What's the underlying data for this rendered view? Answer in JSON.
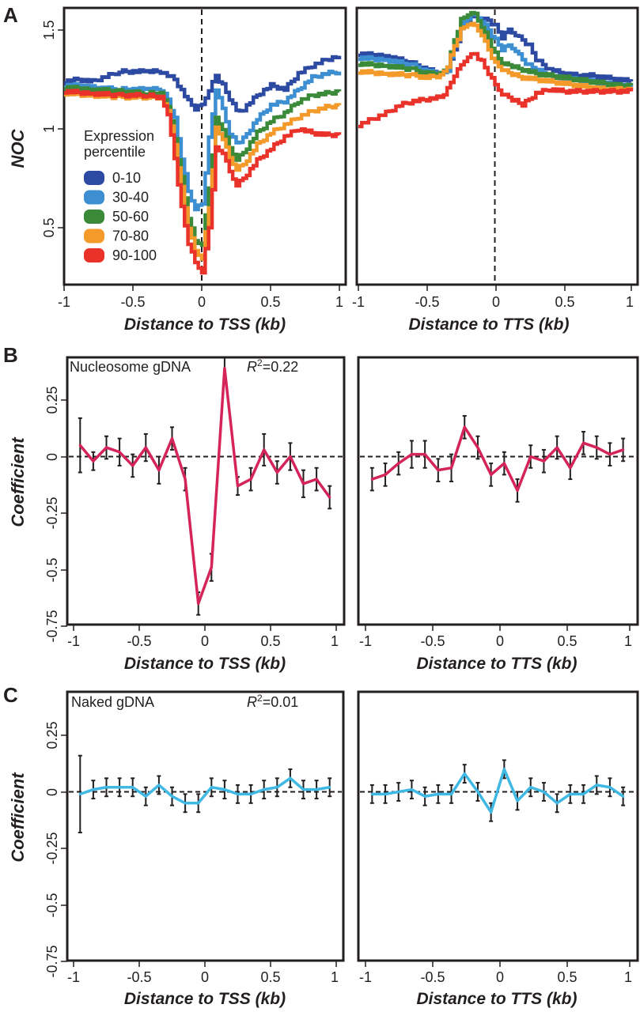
{
  "panels": {
    "A": {
      "letter": "A",
      "ylabel": "NOC",
      "yticks": [
        "0.5",
        "1",
        "1.5"
      ],
      "legend_title_line1": "Expression",
      "legend_title_line2": "percentile",
      "left": {
        "xlabel": "Distance to TSS (kb)",
        "xticks": [
          "-1",
          "-0.5",
          "0",
          "0.5",
          "1"
        ]
      },
      "right": {
        "xlabel": "Distance to TTS (kb)",
        "xticks": [
          "-1",
          "-0.5",
          "0",
          "0.5",
          "1"
        ]
      }
    },
    "B": {
      "letter": "B",
      "ylabel": "Coefficient",
      "yticks": [
        "0.25",
        "0",
        "-0.25",
        "-0.5",
        "-0.75"
      ],
      "label": "Nucleosome gDNA",
      "r2_sym": "R",
      "r2_sup": "2",
      "r2_val": "=0.22",
      "left": {
        "xlabel": "Distance to TSS (kb)",
        "xticks": [
          "-1",
          "-0.5",
          "0",
          "0.5",
          "1"
        ]
      },
      "right": {
        "xlabel": "Distance to TTS (kb)",
        "xticks": [
          "-1",
          "-0.5",
          "0",
          "0.5",
          "1"
        ]
      }
    },
    "C": {
      "letter": "C",
      "ylabel": "Coefficient",
      "yticks": [
        "0.25",
        "0",
        "-0.25",
        "-0.5",
        "-0.75"
      ],
      "label": "Naked gDNA",
      "r2_sym": "R",
      "r2_sup": "2",
      "r2_val": "=0.01",
      "left": {
        "xlabel": "Distance to TSS (kb)",
        "xticks": [
          "-1",
          "-0.5",
          "0",
          "0.5",
          "1"
        ]
      },
      "right": {
        "xlabel": "Distance to TTS (kb)",
        "xticks": [
          "-1",
          "-0.5",
          "0",
          "0.5",
          "1"
        ]
      }
    }
  },
  "chart_data": [
    {
      "id": "A-TSS",
      "type": "line",
      "style": "step",
      "xlabel": "Distance to TSS (kb)",
      "ylabel": "NOC",
      "xlim": [
        -1,
        1
      ],
      "ylim": [
        0.22,
        1.6
      ],
      "vline": 0,
      "series": [
        {
          "name": "0-10",
          "color": "#2d4aa3",
          "x": [
            -1,
            -0.9,
            -0.8,
            -0.6,
            -0.4,
            -0.3,
            -0.2,
            -0.1,
            -0.05,
            0,
            0.05,
            0.1,
            0.15,
            0.2,
            0.25,
            0.3,
            0.4,
            0.5,
            0.6,
            0.7,
            0.8,
            0.9,
            1
          ],
          "y": [
            1.24,
            1.25,
            1.24,
            1.29,
            1.29,
            1.29,
            1.25,
            1.14,
            1.1,
            1.12,
            1.2,
            1.27,
            1.22,
            1.15,
            1.09,
            1.1,
            1.17,
            1.22,
            1.2,
            1.28,
            1.32,
            1.35,
            1.37
          ]
        },
        {
          "name": "30-40",
          "color": "#3d8fd1",
          "x": [
            -1,
            -0.9,
            -0.8,
            -0.6,
            -0.4,
            -0.3,
            -0.25,
            -0.2,
            -0.15,
            -0.1,
            -0.05,
            0,
            0.05,
            0.1,
            0.15,
            0.2,
            0.25,
            0.3,
            0.4,
            0.5,
            0.6,
            0.7,
            0.8,
            0.9,
            1
          ],
          "y": [
            1.22,
            1.22,
            1.21,
            1.2,
            1.2,
            1.2,
            1.15,
            1.05,
            0.85,
            0.68,
            0.6,
            0.62,
            0.95,
            1.2,
            1.1,
            0.98,
            0.93,
            0.95,
            1.05,
            1.12,
            1.14,
            1.2,
            1.26,
            1.28,
            1.29
          ]
        },
        {
          "name": "50-60",
          "color": "#3a8a3a",
          "x": [
            -1,
            -0.8,
            -0.6,
            -0.4,
            -0.3,
            -0.25,
            -0.2,
            -0.15,
            -0.1,
            -0.05,
            0,
            0.05,
            0.1,
            0.15,
            0.2,
            0.25,
            0.3,
            0.4,
            0.5,
            0.6,
            0.7,
            0.8,
            0.9,
            1
          ],
          "y": [
            1.21,
            1.2,
            1.19,
            1.18,
            1.18,
            1.12,
            0.95,
            0.75,
            0.55,
            0.43,
            0.42,
            0.7,
            1.05,
            1.0,
            0.9,
            0.85,
            0.88,
            0.98,
            1.04,
            1.08,
            1.14,
            1.17,
            1.18,
            1.19
          ]
        },
        {
          "name": "70-80",
          "color": "#f39a2a",
          "x": [
            -1,
            -0.8,
            -0.6,
            -0.4,
            -0.3,
            -0.25,
            -0.2,
            -0.15,
            -0.1,
            -0.05,
            0,
            0.05,
            0.1,
            0.15,
            0.2,
            0.25,
            0.3,
            0.4,
            0.5,
            0.6,
            0.7,
            0.8,
            0.9,
            1
          ],
          "y": [
            1.18,
            1.17,
            1.16,
            1.16,
            1.16,
            1.1,
            0.92,
            0.7,
            0.5,
            0.38,
            0.35,
            0.6,
            1.0,
            0.95,
            0.85,
            0.8,
            0.82,
            0.92,
            0.98,
            1.02,
            1.06,
            1.09,
            1.11,
            1.12
          ]
        },
        {
          "name": "90-100",
          "color": "#e8322a",
          "x": [
            -1,
            -0.8,
            -0.6,
            -0.4,
            -0.3,
            -0.25,
            -0.2,
            -0.15,
            -0.1,
            -0.05,
            0,
            0.05,
            0.1,
            0.15,
            0.2,
            0.25,
            0.3,
            0.4,
            0.5,
            0.6,
            0.7,
            0.8,
            0.9,
            1
          ],
          "y": [
            1.19,
            1.18,
            1.17,
            1.17,
            1.16,
            1.08,
            0.85,
            0.6,
            0.42,
            0.32,
            0.28,
            0.5,
            0.9,
            0.88,
            0.78,
            0.72,
            0.75,
            0.84,
            0.9,
            0.96,
            1.0,
            0.98,
            0.97,
            0.97
          ]
        }
      ]
    },
    {
      "id": "A-TTS",
      "type": "line",
      "style": "step",
      "xlabel": "Distance to TTS (kb)",
      "ylabel": "NOC",
      "xlim": [
        -1,
        1
      ],
      "ylim": [
        0.22,
        1.6
      ],
      "vline": 0,
      "series": [
        {
          "name": "0-10",
          "color": "#2d4aa3",
          "x": [
            -1,
            -0.8,
            -0.6,
            -0.5,
            -0.4,
            -0.35,
            -0.3,
            -0.25,
            -0.2,
            -0.15,
            -0.1,
            -0.05,
            0,
            0.05,
            0.1,
            0.15,
            0.2,
            0.25,
            0.3,
            0.4,
            0.5,
            0.6,
            0.7,
            0.8,
            0.9,
            1
          ],
          "y": [
            1.38,
            1.37,
            1.33,
            1.3,
            1.28,
            1.3,
            1.4,
            1.5,
            1.55,
            1.57,
            1.56,
            1.55,
            1.52,
            1.46,
            1.5,
            1.48,
            1.45,
            1.42,
            1.35,
            1.3,
            1.28,
            1.27,
            1.27,
            1.26,
            1.25,
            1.24
          ]
        },
        {
          "name": "30-40",
          "color": "#3d8fd1",
          "x": [
            -1,
            -0.8,
            -0.6,
            -0.5,
            -0.4,
            -0.35,
            -0.3,
            -0.25,
            -0.2,
            -0.15,
            -0.1,
            -0.05,
            0,
            0.05,
            0.1,
            0.15,
            0.2,
            0.25,
            0.3,
            0.4,
            0.5,
            0.6,
            0.7,
            0.8,
            0.9,
            1
          ],
          "y": [
            1.36,
            1.35,
            1.32,
            1.29,
            1.28,
            1.3,
            1.42,
            1.52,
            1.56,
            1.58,
            1.55,
            1.5,
            1.45,
            1.4,
            1.42,
            1.4,
            1.35,
            1.32,
            1.3,
            1.27,
            1.25,
            1.25,
            1.24,
            1.23,
            1.22,
            1.21
          ]
        },
        {
          "name": "50-60",
          "color": "#3a8a3a",
          "x": [
            -1,
            -0.8,
            -0.6,
            -0.5,
            -0.4,
            -0.35,
            -0.3,
            -0.25,
            -0.2,
            -0.15,
            -0.1,
            -0.05,
            0,
            0.05,
            0.1,
            0.2,
            0.3,
            0.4,
            0.5,
            0.6,
            0.7,
            0.8,
            0.9,
            1
          ],
          "y": [
            1.33,
            1.32,
            1.3,
            1.28,
            1.28,
            1.32,
            1.45,
            1.55,
            1.58,
            1.58,
            1.52,
            1.45,
            1.38,
            1.33,
            1.32,
            1.3,
            1.28,
            1.27,
            1.26,
            1.25,
            1.24,
            1.23,
            1.22,
            1.22
          ]
        },
        {
          "name": "70-80",
          "color": "#f39a2a",
          "x": [
            -1,
            -0.8,
            -0.6,
            -0.5,
            -0.4,
            -0.35,
            -0.3,
            -0.25,
            -0.2,
            -0.15,
            -0.1,
            -0.05,
            0,
            0.05,
            0.1,
            0.2,
            0.3,
            0.4,
            0.5,
            0.6,
            0.7,
            0.8,
            0.9,
            1
          ],
          "y": [
            1.29,
            1.28,
            1.27,
            1.26,
            1.27,
            1.32,
            1.42,
            1.5,
            1.53,
            1.52,
            1.48,
            1.4,
            1.33,
            1.3,
            1.28,
            1.26,
            1.25,
            1.24,
            1.23,
            1.22,
            1.21,
            1.2,
            1.2,
            1.2
          ]
        },
        {
          "name": "90-100",
          "color": "#e8322a",
          "x": [
            -1,
            -0.9,
            -0.8,
            -0.7,
            -0.6,
            -0.5,
            -0.4,
            -0.35,
            -0.3,
            -0.25,
            -0.2,
            -0.15,
            -0.1,
            -0.05,
            0,
            0.05,
            0.1,
            0.15,
            0.2,
            0.3,
            0.4,
            0.5,
            0.6,
            0.7,
            0.8,
            0.9,
            1
          ],
          "y": [
            1.02,
            1.05,
            1.08,
            1.12,
            1.14,
            1.15,
            1.16,
            1.2,
            1.27,
            1.32,
            1.37,
            1.38,
            1.34,
            1.28,
            1.22,
            1.18,
            1.16,
            1.14,
            1.12,
            1.18,
            1.2,
            1.19,
            1.19,
            1.19,
            1.19,
            1.19,
            1.19
          ]
        }
      ]
    },
    {
      "id": "B-TSS",
      "type": "line",
      "style": "errorbar",
      "xlabel": "Distance to TSS (kb)",
      "ylabel": "Coefficient",
      "xlim": [
        -1.05,
        1.05
      ],
      "ylim": [
        -0.8,
        0.47
      ],
      "hline": 0,
      "color": "#d4245a",
      "x": [
        -0.95,
        -0.85,
        -0.75,
        -0.65,
        -0.55,
        -0.45,
        -0.35,
        -0.25,
        -0.15,
        -0.05,
        0.05,
        0.15,
        0.25,
        0.35,
        0.45,
        0.55,
        0.65,
        0.75,
        0.85,
        0.95
      ],
      "y": [
        0.05,
        -0.02,
        0.04,
        0.02,
        -0.04,
        0.04,
        -0.06,
        0.08,
        -0.1,
        -0.65,
        -0.49,
        0.39,
        -0.13,
        -0.1,
        0.03,
        -0.07,
        0.0,
        -0.12,
        -0.1,
        -0.18
      ],
      "err": [
        0.12,
        0.04,
        0.05,
        0.06,
        0.05,
        0.06,
        0.06,
        0.05,
        0.05,
        0.05,
        0.06,
        0.05,
        0.04,
        0.05,
        0.07,
        0.05,
        0.06,
        0.06,
        0.05,
        0.05
      ]
    },
    {
      "id": "B-TTS",
      "type": "line",
      "style": "errorbar",
      "xlabel": "Distance to TTS (kb)",
      "ylabel": "Coefficient",
      "xlim": [
        -1.05,
        1.05
      ],
      "ylim": [
        -0.8,
        0.47
      ],
      "hline": 0,
      "color": "#d4245a",
      "x": [
        -0.95,
        -0.85,
        -0.75,
        -0.65,
        -0.55,
        -0.45,
        -0.35,
        -0.25,
        -0.15,
        -0.05,
        0.05,
        0.15,
        0.25,
        0.35,
        0.45,
        0.55,
        0.65,
        0.75,
        0.85,
        0.95
      ],
      "y": [
        -0.1,
        -0.08,
        -0.03,
        0.01,
        0.01,
        -0.06,
        -0.05,
        0.13,
        0.04,
        -0.08,
        -0.03,
        -0.15,
        0.0,
        -0.02,
        0.04,
        -0.05,
        0.06,
        0.04,
        0.01,
        0.03
      ],
      "err": [
        0.05,
        0.05,
        0.05,
        0.06,
        0.06,
        0.05,
        0.06,
        0.05,
        0.05,
        0.05,
        0.05,
        0.05,
        0.05,
        0.05,
        0.05,
        0.05,
        0.05,
        0.05,
        0.05,
        0.05
      ]
    },
    {
      "id": "C-TSS",
      "type": "line",
      "style": "errorbar",
      "xlabel": "Distance to TSS (kb)",
      "ylabel": "Coefficient",
      "xlim": [
        -1.05,
        1.05
      ],
      "ylim": [
        -0.8,
        0.47
      ],
      "hline": 0,
      "color": "#3fb8e4",
      "x": [
        -0.95,
        -0.85,
        -0.75,
        -0.65,
        -0.55,
        -0.45,
        -0.35,
        -0.25,
        -0.15,
        -0.05,
        0.05,
        0.15,
        0.25,
        0.35,
        0.45,
        0.55,
        0.65,
        0.75,
        0.85,
        0.95
      ],
      "y": [
        -0.01,
        0.01,
        0.02,
        0.02,
        0.02,
        -0.02,
        0.03,
        -0.02,
        -0.05,
        -0.05,
        0.02,
        0.01,
        -0.01,
        -0.01,
        0.01,
        0.02,
        0.06,
        0.01,
        0.01,
        0.02
      ],
      "err": [
        0.17,
        0.04,
        0.04,
        0.04,
        0.04,
        0.04,
        0.04,
        0.04,
        0.04,
        0.04,
        0.04,
        0.04,
        0.04,
        0.04,
        0.04,
        0.04,
        0.04,
        0.04,
        0.04,
        0.04
      ]
    },
    {
      "id": "C-TTS",
      "type": "line",
      "style": "errorbar",
      "xlabel": "Distance to TTS (kb)",
      "ylabel": "Coefficient",
      "xlim": [
        -1.05,
        1.05
      ],
      "ylim": [
        -0.8,
        0.47
      ],
      "hline": 0,
      "color": "#3fb8e4",
      "x": [
        -0.95,
        -0.85,
        -0.75,
        -0.65,
        -0.55,
        -0.45,
        -0.35,
        -0.25,
        -0.15,
        -0.05,
        0.05,
        0.15,
        0.25,
        0.35,
        0.45,
        0.55,
        0.65,
        0.75,
        0.85,
        0.95
      ],
      "y": [
        -0.01,
        -0.01,
        0.0,
        0.01,
        -0.02,
        -0.01,
        -0.01,
        0.08,
        0.0,
        -0.09,
        0.1,
        -0.04,
        0.02,
        0.0,
        -0.05,
        -0.01,
        -0.01,
        0.03,
        0.02,
        -0.02
      ],
      "err": [
        0.04,
        0.04,
        0.04,
        0.04,
        0.04,
        0.04,
        0.04,
        0.04,
        0.04,
        0.04,
        0.04,
        0.04,
        0.04,
        0.04,
        0.04,
        0.04,
        0.04,
        0.04,
        0.04,
        0.04
      ]
    }
  ]
}
